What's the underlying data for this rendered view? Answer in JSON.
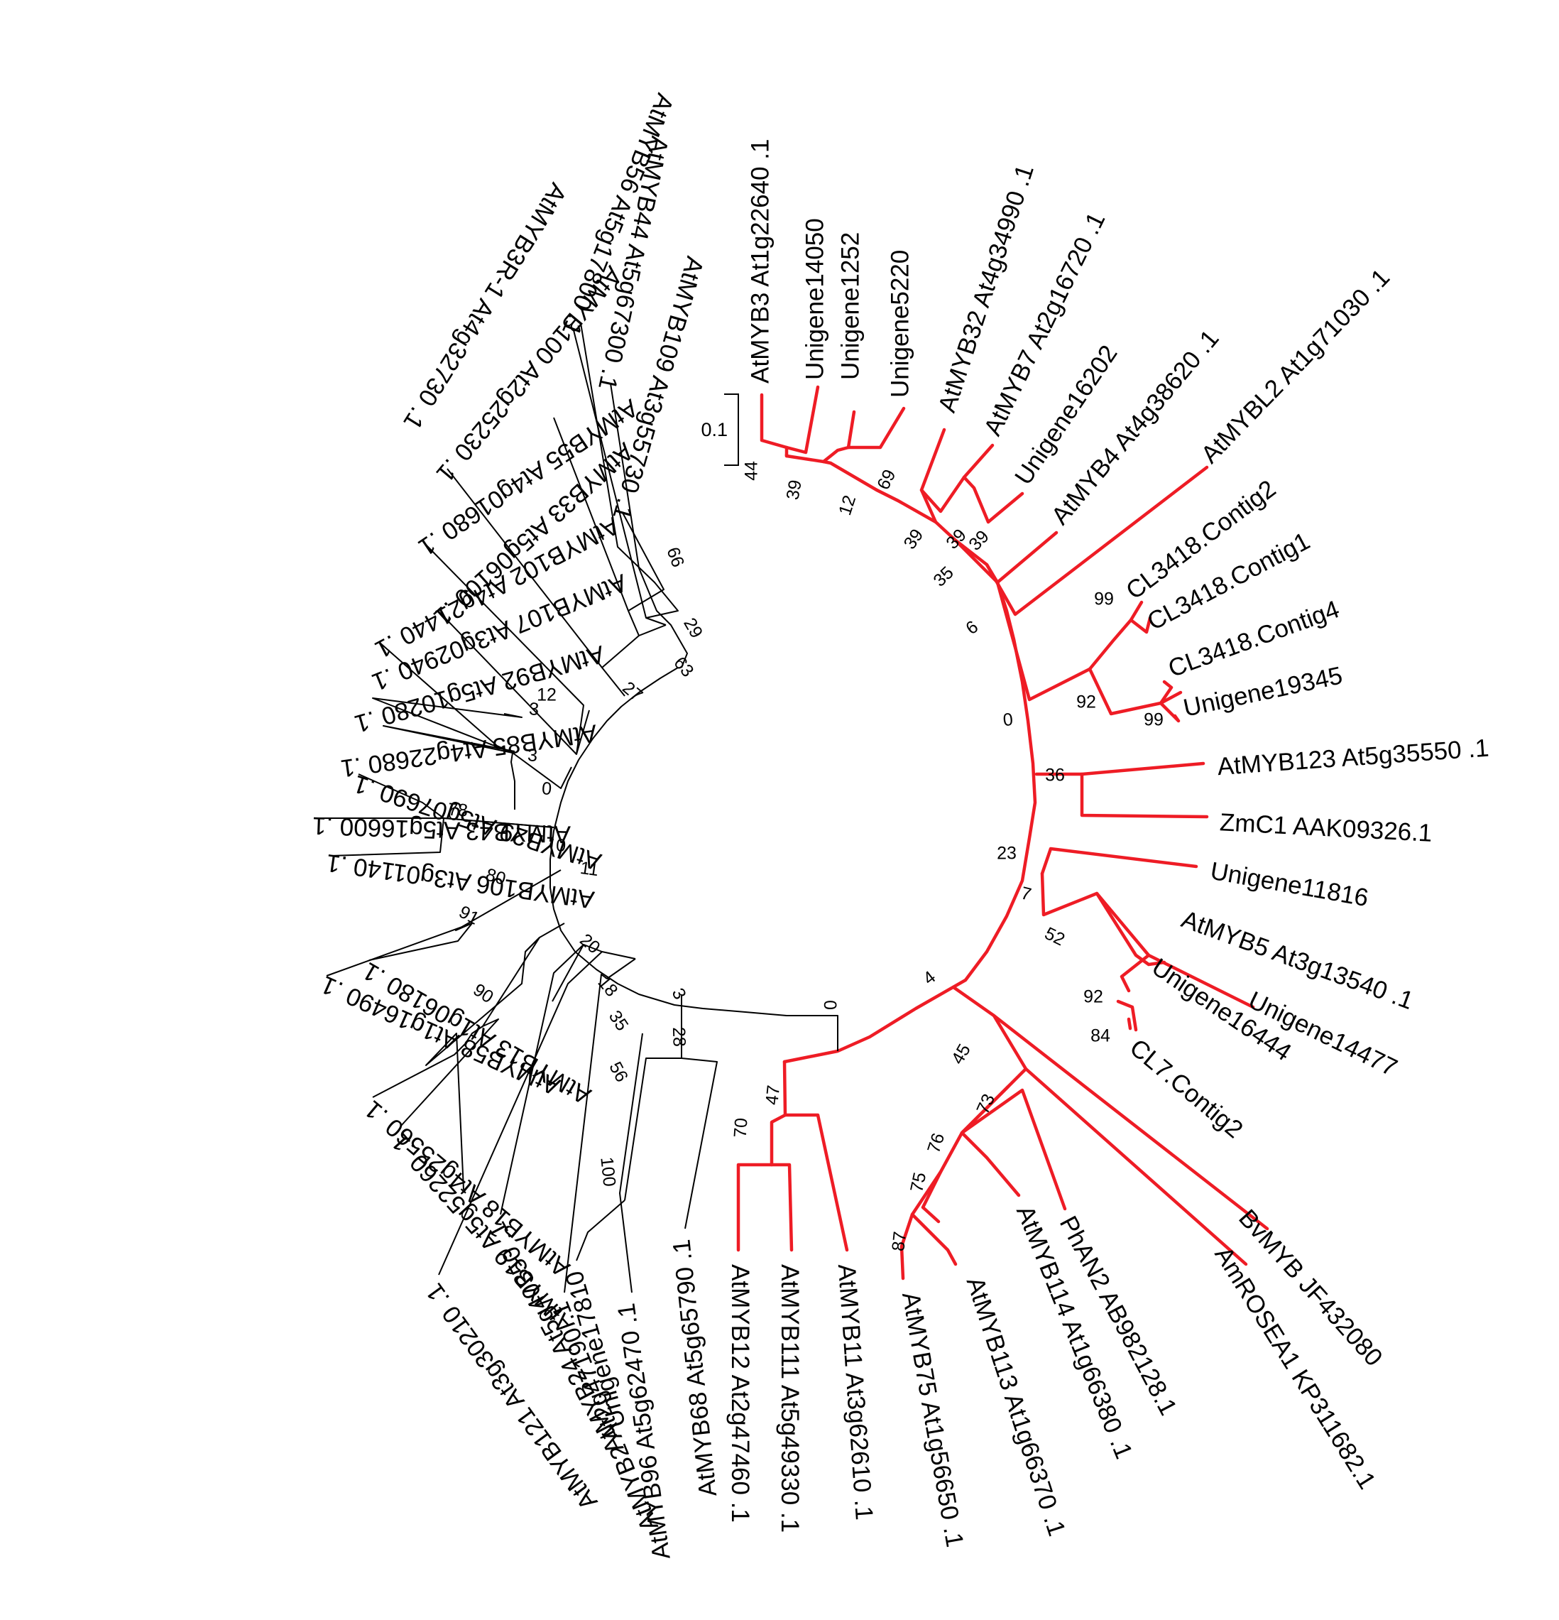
{
  "colors": {
    "highlight": "#ee1c25",
    "default": "#000000"
  },
  "scale_bar": {
    "label": "0.1"
  },
  "leaves": [
    {
      "label": "AtMYB3 At1g22640 .1",
      "red": true
    },
    {
      "label": "Unigene14050",
      "red": true
    },
    {
      "label": "Unigene1252",
      "red": true
    },
    {
      "label": "Unigene5220",
      "red": true
    },
    {
      "label": "AtMYB32 At4g34990 .1",
      "red": true
    },
    {
      "label": "AtMYB7 At2g16720 .1",
      "red": true
    },
    {
      "label": "Unigene16202",
      "red": true
    },
    {
      "label": "AtMYB4 At4g38620 .1",
      "red": true
    },
    {
      "label": "AtMYBL2 At1g71030 .1",
      "red": true
    },
    {
      "label": "CL3418.Contig2",
      "red": true
    },
    {
      "label": "CL3418.Contig1",
      "red": true
    },
    {
      "label": "CL3418.Contig4",
      "red": true
    },
    {
      "label": "Unigene19345",
      "red": true
    },
    {
      "label": "AtMYB123 At5g35550 .1",
      "red": true
    },
    {
      "label": "ZmC1 AAK09326.1",
      "red": true
    },
    {
      "label": "Unigene11816",
      "red": true
    },
    {
      "label": "AtMYB5 At3g13540 .1",
      "red": true
    },
    {
      "label": "Unigene14477",
      "red": true
    },
    {
      "label": "Unigene16444",
      "red": true
    },
    {
      "label": "CL7.Contig2",
      "red": true
    },
    {
      "label": "BvMYB JF432080",
      "red": true
    },
    {
      "label": "AmROSEA1 KP311682.1",
      "red": true
    },
    {
      "label": "PhAN2 AB982128.1",
      "red": true
    },
    {
      "label": "AtMYB114 At1g66380 .1",
      "red": true
    },
    {
      "label": "AtMYB113 At1g66370 .1",
      "red": true
    },
    {
      "label": "AtMYB75 At1g56650 .1",
      "red": true
    },
    {
      "label": "AtMYB11 At3g62610 .1",
      "red": true
    },
    {
      "label": "AtMYB111 At5g49330 .1",
      "red": true
    },
    {
      "label": "AtMYB12 At2g47460 .1",
      "red": true
    },
    {
      "label": "AtMYB68 At5g65790 .1",
      "red": false
    },
    {
      "label": "AtMYB96 At5g62470 .1",
      "red": false
    },
    {
      "label": "Unigene17810",
      "red": false
    },
    {
      "label": "AtMYB2 At2g47190 .1",
      "red": false
    },
    {
      "label": "AtMYB24 At5g40350 .1",
      "red": false
    },
    {
      "label": "AtMYB121 At3g30210 .1",
      "red": false
    },
    {
      "label": "AtMYB19 At5g52260 .1",
      "red": false
    },
    {
      "label": "AtMYB18 At4g25560 .1",
      "red": false
    },
    {
      "label": "AtMYB13 At1g06180 .1",
      "red": false
    },
    {
      "label": "AtMYB58 At1g16490 .1",
      "red": false
    },
    {
      "label": "AtMYB29 At5g07690 .1",
      "red": false
    },
    {
      "label": "AtMYB106 At3g01140 .1",
      "red": false
    },
    {
      "label": "AtMYB43 At5g16600 .1",
      "red": false
    },
    {
      "label": "AtMYB85 At4g22680 .1",
      "red": false
    },
    {
      "label": "AtMYB92 At5g10280 .1",
      "red": false
    },
    {
      "label": "AtMYB107 At3g02940 .1",
      "red": false
    },
    {
      "label": "AtMYB102 At4g21440 .1",
      "red": false
    },
    {
      "label": "AtMYB55 At4g01680 .1",
      "red": false
    },
    {
      "label": "AtMYB33 At5g06100 .1",
      "red": false
    },
    {
      "label": "AtMYB100 At2g25230 .1",
      "red": false
    },
    {
      "label": "AtMYB3R-1 At4g32730 .1",
      "red": false
    },
    {
      "label": "AtMYB56 At5g17800 .1",
      "red": false
    },
    {
      "label": "AtMYB109 At3g55730 .1",
      "red": false
    },
    {
      "label": "AtMYB44 At5g67300 .1",
      "red": false
    }
  ],
  "bootstrap": [
    {
      "value": "44"
    },
    {
      "value": "39"
    },
    {
      "value": "12"
    },
    {
      "value": "69"
    },
    {
      "value": "39"
    },
    {
      "value": "39"
    },
    {
      "value": "39"
    },
    {
      "value": "35"
    },
    {
      "value": "6"
    },
    {
      "value": "99"
    },
    {
      "value": "92"
    },
    {
      "value": "99"
    },
    {
      "value": "0"
    },
    {
      "value": "36"
    },
    {
      "value": "23"
    },
    {
      "value": "7"
    },
    {
      "value": "52"
    },
    {
      "value": "92"
    },
    {
      "value": "84"
    },
    {
      "value": "4"
    },
    {
      "value": "45"
    },
    {
      "value": "73"
    },
    {
      "value": "76"
    },
    {
      "value": "75"
    },
    {
      "value": "87"
    },
    {
      "value": "47"
    },
    {
      "value": "70"
    },
    {
      "value": "0"
    },
    {
      "value": "28"
    },
    {
      "value": "100"
    },
    {
      "value": "3"
    },
    {
      "value": "56"
    },
    {
      "value": "35"
    },
    {
      "value": "18"
    },
    {
      "value": "90"
    },
    {
      "value": "20"
    },
    {
      "value": "91"
    },
    {
      "value": "80"
    },
    {
      "value": "78"
    },
    {
      "value": "3"
    },
    {
      "value": "3"
    },
    {
      "value": "12"
    },
    {
      "value": "0"
    },
    {
      "value": "0"
    },
    {
      "value": "11"
    },
    {
      "value": "27"
    },
    {
      "value": "63"
    },
    {
      "value": "29"
    },
    {
      "value": "66"
    }
  ]
}
